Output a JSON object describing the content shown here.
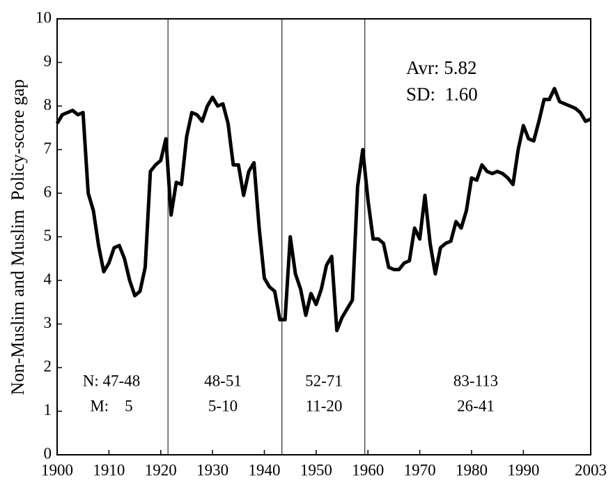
{
  "chart_data": {
    "type": "line",
    "y_label": "Non-Muslim and Muslim  Policy-score gap",
    "x": [
      1900,
      1901,
      1902,
      1903,
      1904,
      1905,
      1906,
      1907,
      1908,
      1909,
      1910,
      1911,
      1912,
      1913,
      1914,
      1915,
      1916,
      1917,
      1918,
      1919,
      1920,
      1921,
      1922,
      1923,
      1924,
      1925,
      1926,
      1927,
      1928,
      1929,
      1930,
      1931,
      1932,
      1933,
      1934,
      1935,
      1936,
      1937,
      1938,
      1939,
      1940,
      1941,
      1942,
      1943,
      1944,
      1945,
      1946,
      1947,
      1948,
      1949,
      1950,
      1951,
      1952,
      1953,
      1954,
      1955,
      1956,
      1957,
      1958,
      1959,
      1960,
      1961,
      1962,
      1963,
      1964,
      1965,
      1966,
      1967,
      1968,
      1969,
      1970,
      1971,
      1972,
      1973,
      1974,
      1975,
      1976,
      1977,
      1978,
      1979,
      1980,
      1981,
      1982,
      1983,
      1984,
      1985,
      1986,
      1987,
      1988,
      1989,
      1990,
      1991,
      1992,
      1993,
      1994,
      1995,
      1996,
      1997,
      1998,
      1999,
      2000,
      2001,
      2002,
      2003
    ],
    "values": [
      7.6,
      7.8,
      7.85,
      7.9,
      7.8,
      7.85,
      6.0,
      5.6,
      4.8,
      4.2,
      4.4,
      4.75,
      4.8,
      4.5,
      4.0,
      3.65,
      3.75,
      4.3,
      6.5,
      6.65,
      6.75,
      7.25,
      5.5,
      6.25,
      6.2,
      7.3,
      7.85,
      7.8,
      7.65,
      8.0,
      8.2,
      8.0,
      8.05,
      7.6,
      6.65,
      6.65,
      5.95,
      6.5,
      6.7,
      5.2,
      4.05,
      3.85,
      3.75,
      3.1,
      3.1,
      5.0,
      4.15,
      3.8,
      3.2,
      3.7,
      3.45,
      3.8,
      4.35,
      4.55,
      2.85,
      3.15,
      3.35,
      3.55,
      6.15,
      7.0,
      5.85,
      4.95,
      4.95,
      4.85,
      4.3,
      4.25,
      4.25,
      4.4,
      4.45,
      5.2,
      4.95,
      5.95,
      4.85,
      4.15,
      4.75,
      4.85,
      4.9,
      5.35,
      5.2,
      5.6,
      6.35,
      6.3,
      6.65,
      6.5,
      6.45,
      6.5,
      6.45,
      6.35,
      6.2,
      7.0,
      7.55,
      7.25,
      7.2,
      7.65,
      8.15,
      8.15,
      8.4,
      8.1,
      8.05,
      8.0,
      7.95,
      7.85,
      7.65,
      7.7
    ],
    "color": "#000000",
    "xlim": [
      1900,
      2003
    ],
    "xticks": [
      1900,
      1910,
      1920,
      1930,
      1940,
      1950,
      1960,
      1970,
      1980,
      1990,
      2003
    ],
    "ylim": [
      0,
      10
    ],
    "yticks": [
      0,
      1,
      2,
      3,
      4,
      5,
      6,
      7,
      8,
      9,
      10
    ],
    "dividers": [
      1921.4,
      1943.4,
      1959.4
    ],
    "stats": [
      "Avr: 5.82",
      "SD:  1.60"
    ],
    "periods": [
      [
        "N: 47-48",
        "M:    5"
      ],
      [
        "48-51",
        "5-10"
      ],
      [
        "52-71",
        "11-20"
      ],
      [
        "83-113",
        "26-41"
      ]
    ]
  }
}
